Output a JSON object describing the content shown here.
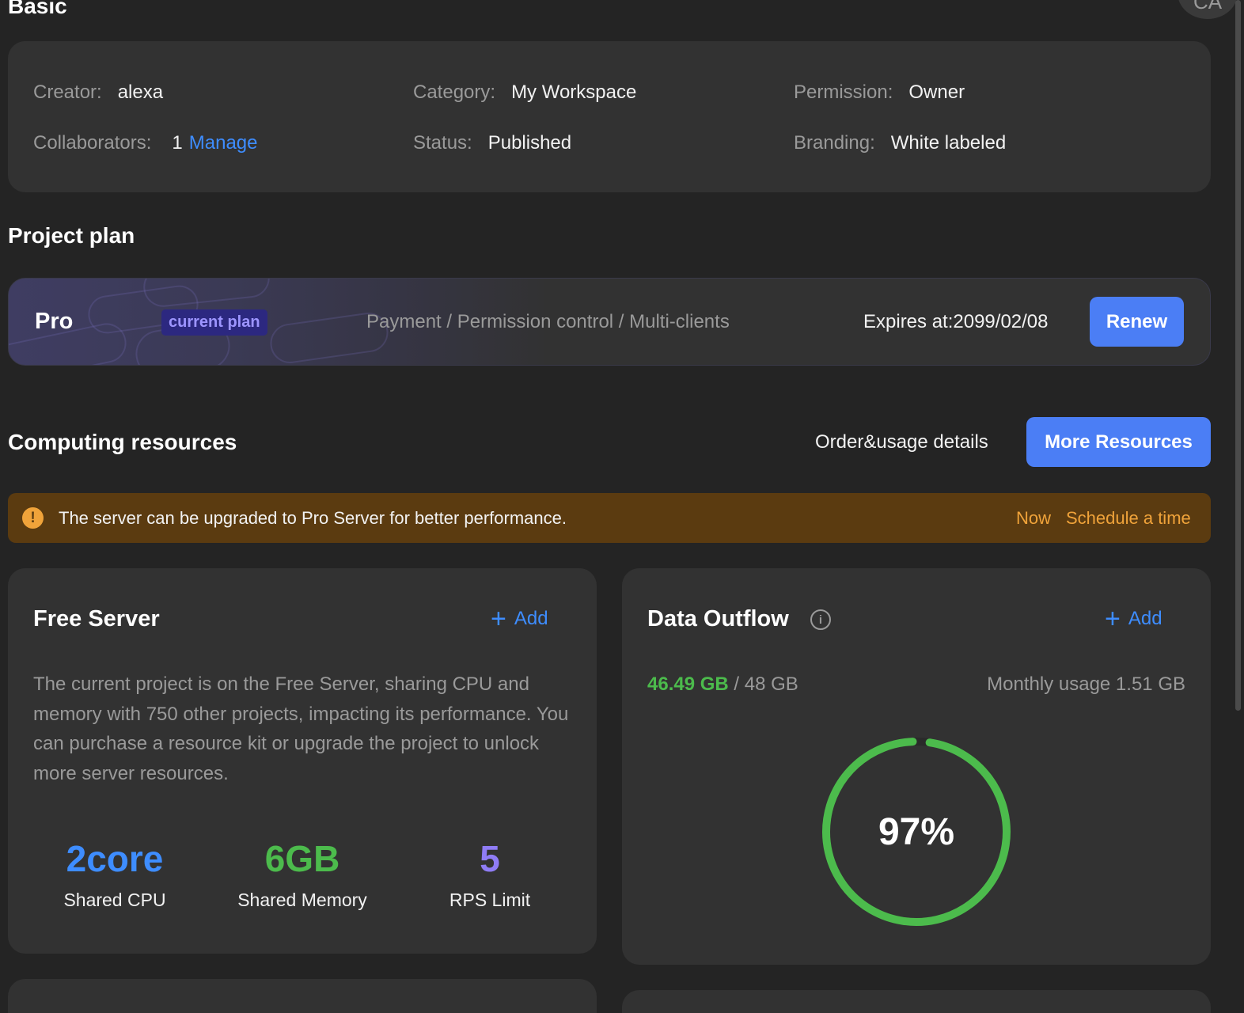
{
  "sections": {
    "basic_title": "Basic",
    "plan_title": "Project plan",
    "computing_title": "Computing resources"
  },
  "avatar": {
    "initials": "CA"
  },
  "basic": {
    "creator_label": "Creator:",
    "creator_value": "alexa",
    "category_label": "Category:",
    "category_value": "My Workspace",
    "permission_label": "Permission:",
    "permission_value": "Owner",
    "collaborators_label": "Collaborators:",
    "collaborators_value": "1",
    "collaborators_link": "Manage",
    "status_label": "Status:",
    "status_value": "Published",
    "branding_label": "Branding:",
    "branding_value": "White labeled"
  },
  "plan": {
    "name": "Pro",
    "badge": "current plan",
    "features": "Payment / Permission control / Multi-clients",
    "expires": "Expires at:2099/02/08",
    "renew_label": "Renew"
  },
  "computing": {
    "order_link": "Order&usage details",
    "more_button": "More Resources",
    "banner": {
      "icon": "!",
      "text": "The server can be upgraded to Pro Server for better performance.",
      "now_link": "Now",
      "schedule_link": "Schedule a time"
    }
  },
  "free_server": {
    "title": "Free Server",
    "add_label": "Add",
    "description": "The current project is on the Free Server, sharing CPU and memory with 750 other projects, impacting its performance. You can purchase a resource kit or upgrade the project to unlock more server resources.",
    "stats": [
      {
        "value": "2core",
        "label": "Shared CPU",
        "color": "#3e8dff"
      },
      {
        "value": "6GB",
        "label": "Shared Memory",
        "color": "#4cbb4c"
      },
      {
        "value": "5",
        "label": "RPS Limit",
        "color": "#8f7cf5"
      }
    ]
  },
  "data_outflow": {
    "title": "Data Outflow",
    "info_icon": "i",
    "add_label": "Add",
    "used": "46.49 GB",
    "total": " / 48 GB",
    "monthly": "Monthly usage 1.51 GB",
    "percent_label": "97%",
    "percent_value": 0.97,
    "ring_color": "#4cbb4c"
  },
  "colors": {
    "accent": "#4b7ef5",
    "link": "#3e8dff",
    "warning": "#f0a33a",
    "success": "#4cbb4c"
  }
}
